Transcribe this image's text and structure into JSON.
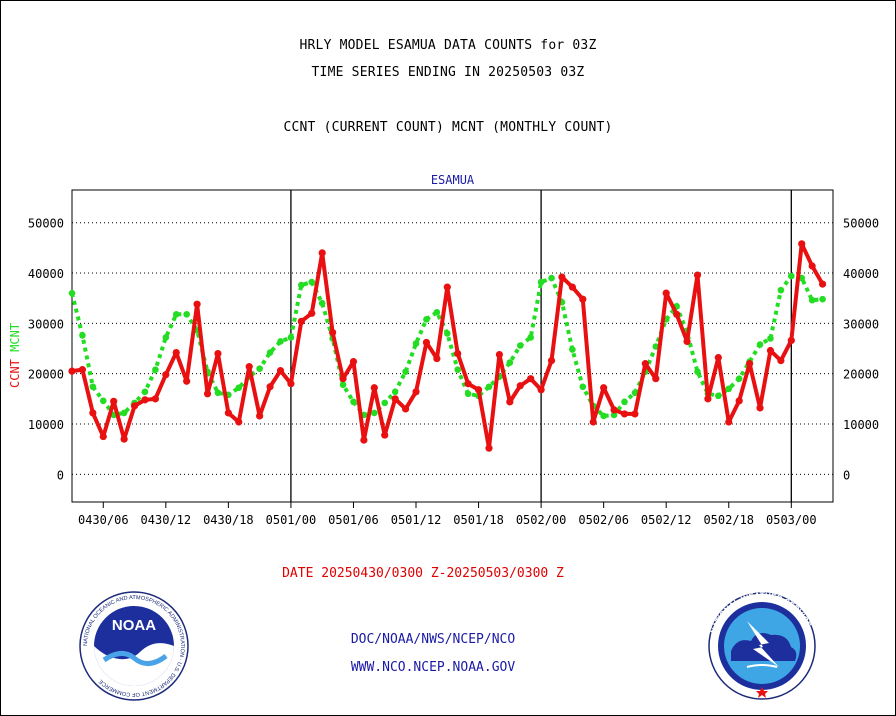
{
  "titles": {
    "line1": "HRLY MODEL ESAMUA DATA COUNTS for 03Z",
    "line2": "TIME SERIES ENDING IN 20250503 03Z",
    "line3": "CCNT (CURRENT COUNT) MCNT (MONTHLY COUNT)"
  },
  "date_range_label": "DATE 20250430/0300 Z-20250503/0300 Z",
  "footer": {
    "org": "DOC/NOAA/NWS/NCEP/NCO",
    "url": "WWW.NCO.NCEP.NOAA.GOV"
  },
  "logos": {
    "left": {
      "icon": "noaa-logo",
      "text": "NOAA",
      "ring": "NATIONAL OCEANIC AND ATMOSPHERIC ADMINISTRATION · U.S. DEPARTMENT OF COMMERCE"
    },
    "right": {
      "icon": "nws-logo",
      "ring": "NATIONAL WEATHER SERVICE"
    }
  },
  "colors": {
    "ccnt": "#e81010",
    "mcnt": "#22dd22",
    "label": "#1a1aa6",
    "date": "#e00000"
  },
  "chart_data": {
    "type": "line",
    "title": "ESAMUA",
    "ylabel_parts": [
      {
        "text": "CCNT",
        "color": "#e81010"
      },
      {
        "text": "MCNT",
        "color": "#22dd22"
      }
    ],
    "ylim": [
      -5500,
      56500
    ],
    "yticks": [
      0,
      10000,
      20000,
      30000,
      40000,
      50000
    ],
    "xlim": [
      0,
      73
    ],
    "xticks": [
      {
        "x": 3,
        "label": "0430/06"
      },
      {
        "x": 9,
        "label": "0430/12"
      },
      {
        "x": 15,
        "label": "0430/18"
      },
      {
        "x": 21,
        "label": "0501/00"
      },
      {
        "x": 27,
        "label": "0501/06"
      },
      {
        "x": 33,
        "label": "0501/12"
      },
      {
        "x": 39,
        "label": "0501/18"
      },
      {
        "x": 45,
        "label": "0502/00"
      },
      {
        "x": 51,
        "label": "0502/06"
      },
      {
        "x": 57,
        "label": "0502/12"
      },
      {
        "x": 63,
        "label": "0502/18"
      },
      {
        "x": 69,
        "label": "0503/00"
      }
    ],
    "day_boundaries": [
      21,
      45,
      69
    ],
    "grid": true,
    "series": [
      {
        "name": "CCNT",
        "color": "#e81010",
        "values": [
          20500,
          20800,
          12200,
          7500,
          14500,
          7000,
          13600,
          14800,
          15000,
          19800,
          24200,
          18500,
          33800,
          16000,
          24000,
          12200,
          10400,
          21400,
          11600,
          17400,
          20600,
          18000,
          30400,
          32000,
          44000,
          28200,
          19000,
          22400,
          6800,
          17200,
          7800,
          15000,
          13000,
          16400,
          26200,
          23000,
          37200,
          24000,
          18000,
          16800,
          5200,
          23800,
          14400,
          17600,
          19000,
          16800,
          22600,
          39200,
          37200,
          34800,
          10400,
          17200,
          12800,
          12000,
          12000,
          22000,
          19000,
          36000,
          31800,
          26400,
          39600,
          15000,
          23200,
          10400,
          14600,
          22000,
          13200,
          24600,
          22600,
          26600,
          45800,
          41400,
          37800
        ]
      },
      {
        "name": "MCNT",
        "color": "#22dd22",
        "values": [
          36000,
          27600,
          17400,
          14600,
          11800,
          12200,
          14200,
          16400,
          20800,
          27200,
          31800,
          31800,
          28600,
          20400,
          16200,
          15800,
          17200,
          19400,
          21000,
          24200,
          26400,
          27200,
          37600,
          38200,
          34000,
          27000,
          17800,
          14400,
          11800,
          12200,
          14200,
          16400,
          20400,
          26000,
          30800,
          32200,
          28000,
          20800,
          16000,
          15600,
          17400,
          19400,
          22200,
          25600,
          27200,
          38200,
          39000,
          34200,
          24800,
          17400,
          13600,
          11600,
          11800,
          14400,
          16200,
          20400,
          25400,
          30800,
          33400,
          28200,
          20400,
          16000,
          15600,
          17000,
          19000,
          22400,
          25800,
          27000,
          36600,
          39400,
          39000,
          34600,
          34800
        ]
      }
    ]
  }
}
